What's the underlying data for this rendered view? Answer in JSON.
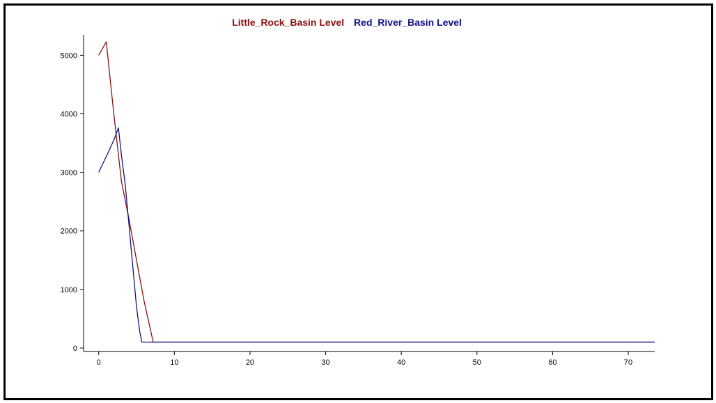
{
  "chart_data": {
    "type": "line",
    "title": "",
    "xlabel": "",
    "ylabel": "",
    "xlim": [
      -2,
      73.5
    ],
    "ylim": [
      -60,
      5350
    ],
    "x_ticks": [
      0,
      10,
      20,
      30,
      40,
      50,
      60,
      70
    ],
    "y_ticks": [
      0,
      1000,
      2000,
      3000,
      4000,
      5000
    ],
    "grid": false,
    "legend_position": "top",
    "series": [
      {
        "name": "Little_Rock_Basin Level",
        "color": "#8b1010",
        "points": [
          [
            0,
            5000
          ],
          [
            1,
            5230
          ],
          [
            2,
            4000
          ],
          [
            3,
            2850
          ],
          [
            4,
            2200
          ],
          [
            5,
            1500
          ],
          [
            6,
            800
          ],
          [
            7.2,
            100
          ],
          [
            10,
            100
          ],
          [
            20,
            100
          ],
          [
            30,
            100
          ],
          [
            40,
            100
          ],
          [
            50,
            100
          ],
          [
            60,
            100
          ],
          [
            70,
            100
          ],
          [
            73.5,
            100
          ]
        ]
      },
      {
        "name": "Red_River_Basin Level",
        "color": "#10108b",
        "points": [
          [
            0,
            3000
          ],
          [
            1,
            3270
          ],
          [
            2,
            3550
          ],
          [
            2.6,
            3760
          ],
          [
            3,
            3300
          ],
          [
            3.5,
            2800
          ],
          [
            4,
            2100
          ],
          [
            4.5,
            1400
          ],
          [
            5,
            700
          ],
          [
            5.4,
            300
          ],
          [
            5.7,
            100
          ],
          [
            10,
            100
          ],
          [
            20,
            100
          ],
          [
            30,
            100
          ],
          [
            40,
            100
          ],
          [
            50,
            100
          ],
          [
            60,
            100
          ],
          [
            70,
            100
          ],
          [
            73.5,
            100
          ]
        ]
      }
    ]
  }
}
